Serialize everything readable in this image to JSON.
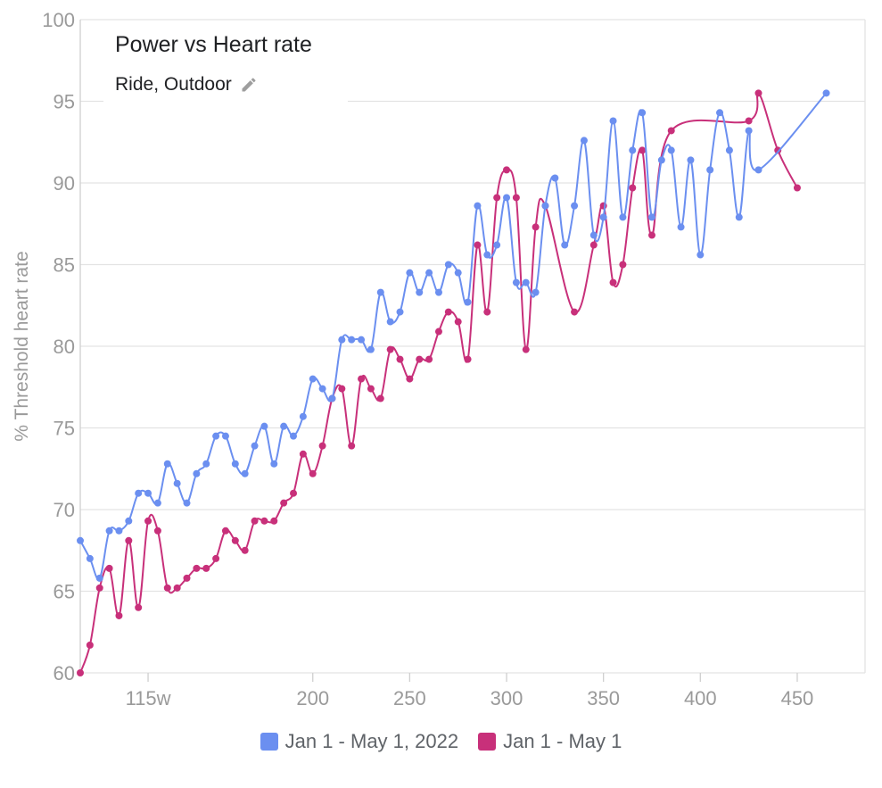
{
  "chart_data": {
    "type": "line",
    "title": "Power vs Heart rate",
    "subtitle": "Ride, Outdoor",
    "subtitle_icon": "pencil-icon",
    "xlabel": "",
    "ylabel": "% Threshold heart rate",
    "xlim": [
      80,
      485
    ],
    "ylim": [
      60,
      100
    ],
    "x_ticks": [
      {
        "value": 115,
        "label": "115w"
      },
      {
        "value": 200,
        "label": "200"
      },
      {
        "value": 250,
        "label": "250"
      },
      {
        "value": 300,
        "label": "300"
      },
      {
        "value": 350,
        "label": "350"
      },
      {
        "value": 400,
        "label": "400"
      },
      {
        "value": 450,
        "label": "450"
      }
    ],
    "y_ticks": [
      60,
      65,
      70,
      75,
      80,
      85,
      90,
      95,
      100
    ],
    "grid": true,
    "legend_position": "bottom",
    "series": [
      {
        "name": "Jan 1 - May 1, 2022",
        "color": "#6b8ff0",
        "points": [
          [
            80,
            68.1
          ],
          [
            85,
            67.0
          ],
          [
            90,
            65.8
          ],
          [
            95,
            68.7
          ],
          [
            100,
            68.7
          ],
          [
            105,
            69.3
          ],
          [
            110,
            71.0
          ],
          [
            115,
            71.0
          ],
          [
            120,
            70.4
          ],
          [
            125,
            72.8
          ],
          [
            130,
            71.6
          ],
          [
            135,
            70.4
          ],
          [
            140,
            72.2
          ],
          [
            145,
            72.8
          ],
          [
            150,
            74.5
          ],
          [
            155,
            74.5
          ],
          [
            160,
            72.8
          ],
          [
            165,
            72.2
          ],
          [
            170,
            73.9
          ],
          [
            175,
            75.1
          ],
          [
            180,
            72.8
          ],
          [
            185,
            75.1
          ],
          [
            190,
            74.5
          ],
          [
            195,
            75.7
          ],
          [
            200,
            78.0
          ],
          [
            205,
            77.4
          ],
          [
            210,
            76.8
          ],
          [
            215,
            80.4
          ],
          [
            220,
            80.4
          ],
          [
            225,
            80.4
          ],
          [
            230,
            79.8
          ],
          [
            235,
            83.3
          ],
          [
            240,
            81.5
          ],
          [
            245,
            82.1
          ],
          [
            250,
            84.5
          ],
          [
            255,
            83.3
          ],
          [
            260,
            84.5
          ],
          [
            265,
            83.3
          ],
          [
            270,
            85.0
          ],
          [
            275,
            84.5
          ],
          [
            280,
            82.7
          ],
          [
            285,
            88.6
          ],
          [
            290,
            85.6
          ],
          [
            295,
            86.2
          ],
          [
            300,
            89.1
          ],
          [
            305,
            83.9
          ],
          [
            310,
            83.9
          ],
          [
            315,
            83.3
          ],
          [
            320,
            88.6
          ],
          [
            325,
            90.3
          ],
          [
            330,
            86.2
          ],
          [
            335,
            88.6
          ],
          [
            340,
            92.6
          ],
          [
            345,
            86.8
          ],
          [
            350,
            87.9
          ],
          [
            355,
            93.8
          ],
          [
            360,
            87.9
          ],
          [
            365,
            92.0
          ],
          [
            370,
            94.3
          ],
          [
            375,
            87.9
          ],
          [
            380,
            91.4
          ],
          [
            385,
            92.0
          ],
          [
            390,
            87.3
          ],
          [
            395,
            91.4
          ],
          [
            400,
            85.6
          ],
          [
            405,
            90.8
          ],
          [
            410,
            94.3
          ],
          [
            415,
            92.0
          ],
          [
            420,
            87.9
          ],
          [
            425,
            93.2
          ],
          [
            430,
            90.8
          ],
          [
            465,
            95.5
          ]
        ]
      },
      {
        "name": "Jan 1 - May 1",
        "color": "#c8307a",
        "points": [
          [
            80,
            60.0
          ],
          [
            85,
            61.7
          ],
          [
            90,
            65.2
          ],
          [
            95,
            66.4
          ],
          [
            100,
            63.5
          ],
          [
            105,
            68.1
          ],
          [
            110,
            64.0
          ],
          [
            115,
            69.3
          ],
          [
            120,
            68.7
          ],
          [
            125,
            65.2
          ],
          [
            130,
            65.2
          ],
          [
            135,
            65.8
          ],
          [
            140,
            66.4
          ],
          [
            145,
            66.4
          ],
          [
            150,
            67.0
          ],
          [
            155,
            68.7
          ],
          [
            160,
            68.1
          ],
          [
            165,
            67.5
          ],
          [
            170,
            69.3
          ],
          [
            175,
            69.3
          ],
          [
            180,
            69.3
          ],
          [
            185,
            70.4
          ],
          [
            190,
            71.0
          ],
          [
            195,
            73.4
          ],
          [
            200,
            72.2
          ],
          [
            205,
            73.9
          ],
          [
            210,
            76.8
          ],
          [
            215,
            77.4
          ],
          [
            220,
            73.9
          ],
          [
            225,
            78.0
          ],
          [
            230,
            77.4
          ],
          [
            235,
            76.8
          ],
          [
            240,
            79.8
          ],
          [
            245,
            79.2
          ],
          [
            250,
            78.0
          ],
          [
            255,
            79.2
          ],
          [
            260,
            79.2
          ],
          [
            265,
            80.9
          ],
          [
            270,
            82.1
          ],
          [
            275,
            81.5
          ],
          [
            280,
            79.2
          ],
          [
            285,
            86.2
          ],
          [
            290,
            82.1
          ],
          [
            295,
            89.1
          ],
          [
            300,
            90.8
          ],
          [
            305,
            89.1
          ],
          [
            310,
            79.8
          ],
          [
            315,
            87.3
          ],
          [
            320,
            88.6
          ],
          [
            335,
            82.1
          ],
          [
            345,
            86.2
          ],
          [
            350,
            88.6
          ],
          [
            355,
            83.9
          ],
          [
            360,
            85.0
          ],
          [
            365,
            89.7
          ],
          [
            370,
            92.0
          ],
          [
            375,
            86.8
          ],
          [
            385,
            93.2
          ],
          [
            425,
            93.8
          ],
          [
            430,
            95.5
          ],
          [
            440,
            92.0
          ],
          [
            450,
            89.7
          ]
        ]
      }
    ]
  }
}
